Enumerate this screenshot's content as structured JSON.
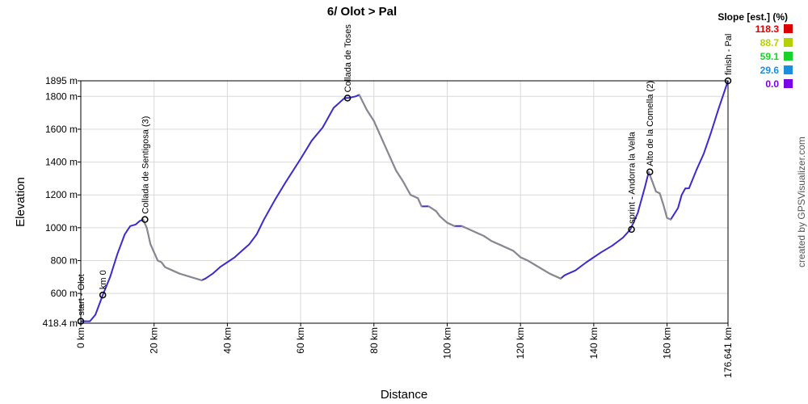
{
  "chart_data": {
    "type": "line",
    "title": "6/ Olot > Pal",
    "xlabel": "Distance",
    "ylabel": "Elevation",
    "xlim": [
      0,
      176.641
    ],
    "ylim": [
      418.4,
      1895
    ],
    "x_unit": "km",
    "y_unit": "m",
    "x_ticks": [
      0,
      20,
      40,
      60,
      80,
      100,
      120,
      140,
      160,
      176.641
    ],
    "x_tick_labels": [
      "0 km",
      "20 km",
      "40 km",
      "60 km",
      "80 km",
      "100 km",
      "120 km",
      "140 km",
      "160 km",
      "176.641 km"
    ],
    "y_ticks": [
      418.4,
      600,
      800,
      1000,
      1200,
      1400,
      1600,
      1800,
      1895
    ],
    "y_tick_labels": [
      "418.4 m",
      "600 m",
      "800 m",
      "1000 m",
      "1200 m",
      "1400 m",
      "1600 m",
      "1800 m",
      "1895 m"
    ],
    "grid": true,
    "legend": {
      "title": "Slope [est.] (%)",
      "placement": "top-right",
      "entries": [
        {
          "label": "118.3",
          "color": "#dd0000"
        },
        {
          "label": "88.7",
          "color": "#b5d200"
        },
        {
          "label": "59.1",
          "color": "#19d22b"
        },
        {
          "label": "29.6",
          "color": "#1a8fe0"
        },
        {
          "label": "0.0",
          "color": "#7a00e8"
        }
      ]
    },
    "series": [
      {
        "x": [
          0,
          2.5,
          4,
          6,
          8,
          10,
          12,
          13.5,
          15,
          16,
          17,
          18,
          19,
          20,
          21,
          22,
          23,
          25,
          27,
          30,
          33,
          34,
          36,
          38,
          40,
          42,
          44,
          46,
          48,
          50,
          53,
          56,
          60,
          63,
          66,
          69,
          72,
          73,
          75,
          76,
          78,
          80,
          82,
          84,
          86,
          88,
          90,
          92,
          93,
          95,
          97,
          98,
          100,
          102,
          104,
          106,
          108,
          110,
          112,
          115,
          118,
          120,
          122,
          125,
          128,
          130,
          131,
          132,
          133,
          135,
          138,
          142,
          145,
          148,
          150,
          152,
          154,
          155,
          156,
          157,
          158,
          159,
          160,
          161,
          163,
          164,
          165,
          166,
          168,
          170,
          172,
          174,
          176.641
        ],
        "y": [
          430,
          430,
          470,
          590,
          700,
          840,
          960,
          1010,
          1020,
          1040,
          1050,
          1000,
          900,
          850,
          800,
          790,
          760,
          740,
          720,
          700,
          680,
          690,
          720,
          760,
          790,
          820,
          860,
          900,
          960,
          1050,
          1170,
          1280,
          1420,
          1530,
          1610,
          1730,
          1790,
          1790,
          1800,
          1810,
          1720,
          1650,
          1550,
          1450,
          1350,
          1280,
          1200,
          1180,
          1130,
          1130,
          1100,
          1070,
          1030,
          1010,
          1010,
          990,
          970,
          950,
          920,
          890,
          860,
          820,
          800,
          760,
          720,
          700,
          690,
          710,
          720,
          740,
          790,
          850,
          890,
          940,
          990,
          1090,
          1250,
          1340,
          1280,
          1220,
          1210,
          1140,
          1060,
          1050,
          1120,
          1200,
          1240,
          1240,
          1350,
          1450,
          1580,
          1720,
          1895
        ]
      }
    ],
    "points_of_interest": [
      {
        "label": "start - Olot",
        "x": 0,
        "y": 430
      },
      {
        "label": "km 0",
        "x": 6,
        "y": 590
      },
      {
        "label": "Collada de Sentigosa (3)",
        "x": 17.5,
        "y": 1050
      },
      {
        "label": "Collada de Toses",
        "x": 72.8,
        "y": 1790
      },
      {
        "label": "sprint - Andorra la Vella",
        "x": 150.3,
        "y": 990
      },
      {
        "label": "Alto de la Comella (2)",
        "x": 155.3,
        "y": 1340
      },
      {
        "label": "finish - Pal",
        "x": 176.641,
        "y": 1895
      }
    ],
    "credit": "created by GPSVisualizer.com"
  },
  "colors": {
    "line_main": "#3b2ad0",
    "line_grey": "#8a8a8a",
    "grid": "#d9d9d9",
    "frame": "#000000"
  }
}
